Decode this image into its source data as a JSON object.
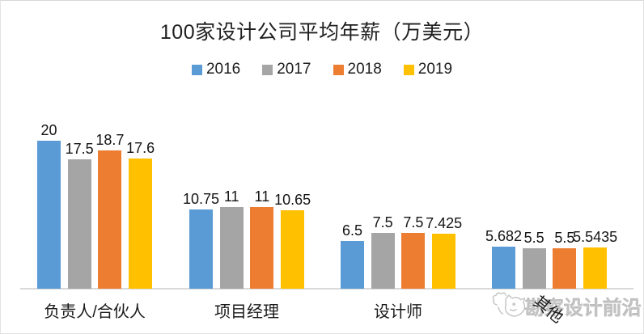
{
  "chart_data": {
    "type": "bar",
    "title": "100家设计公司平均年薪（万美元）",
    "categories": [
      "负责人/合伙人",
      "项目经理",
      "设计师",
      "其他"
    ],
    "series": [
      {
        "name": "2016",
        "color": "#5B9BD5",
        "values": [
          20,
          10.75,
          6.5,
          5.682
        ]
      },
      {
        "name": "2017",
        "color": "#A5A5A5",
        "values": [
          17.5,
          11,
          7.5,
          5.5
        ]
      },
      {
        "name": "2018",
        "color": "#ED7D31",
        "values": [
          18.7,
          11,
          7.5,
          5.5
        ]
      },
      {
        "name": "2019",
        "color": "#FFC000",
        "values": [
          17.6,
          10.65,
          7.425,
          5.5435
        ]
      }
    ],
    "ylim": [
      0,
      20
    ],
    "grid": false,
    "legend_position": "top",
    "data_labels": true,
    "axis_line_color": "#D9D9D9"
  },
  "watermark": {
    "text": "勘察设计前沿",
    "logo": "cat-doodle-logo"
  }
}
